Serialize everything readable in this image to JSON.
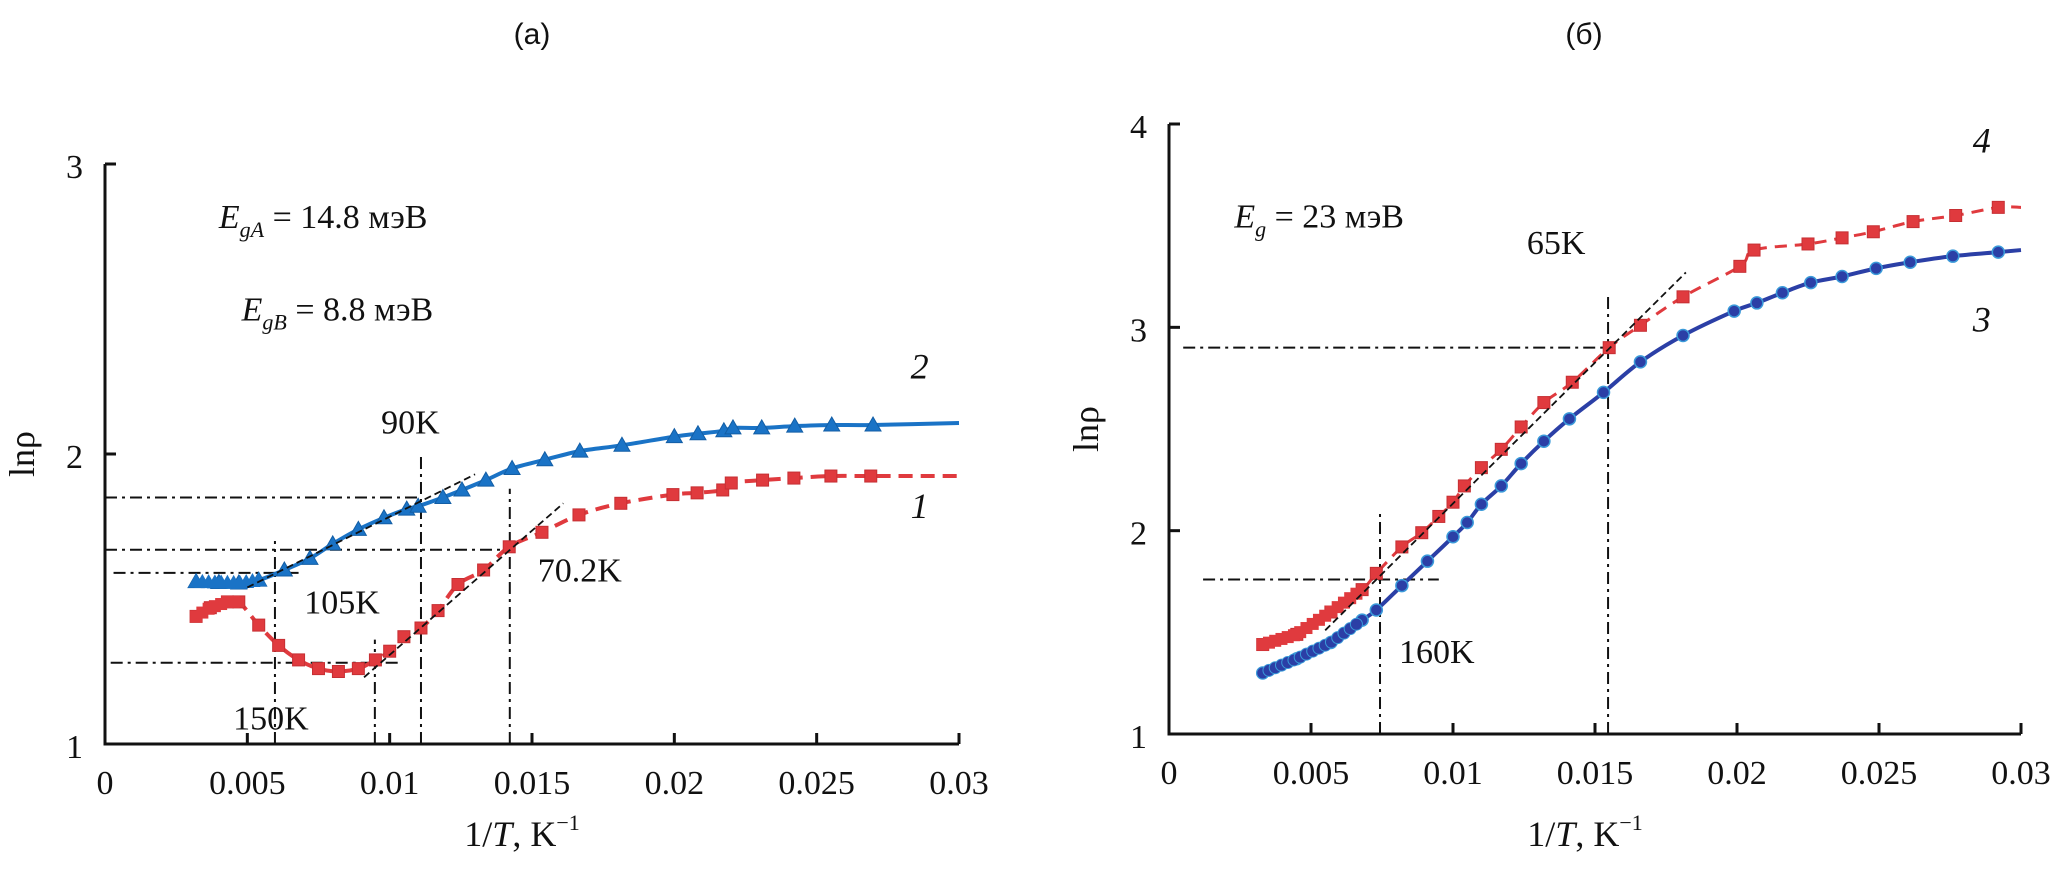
{
  "chart_data": [
    {
      "type": "line",
      "panel_label": "(a)",
      "xlabel": "1/T, K",
      "xlabel_sup": "−1",
      "ylabel": "lnρ",
      "xlim": [
        0,
        0.03
      ],
      "ylim": [
        1,
        3
      ],
      "x_ticks": [
        0,
        0.005,
        0.01,
        0.015,
        0.02,
        0.025,
        0.03
      ],
      "x_tick_labels": [
        "0",
        "0.005",
        "0.01",
        "0.015",
        "0.02",
        "0.025",
        "0.03"
      ],
      "y_ticks": [
        1,
        2,
        3
      ],
      "y_tick_labels": [
        "1",
        "2",
        "3"
      ],
      "grid": false,
      "annotations": [
        {
          "text": "E_gA = 14.8 мэВ",
          "main": "E",
          "sub": "gA",
          "rest": " = 14.8 мэВ",
          "x": 0.004,
          "y": 2.78
        },
        {
          "text": "E_gB = 8.8 мэВ",
          "main": "E",
          "sub": "gB",
          "rest": " = 8.8 мэВ",
          "x": 0.0048,
          "y": 2.46
        },
        {
          "text": "90K",
          "x": 0.0097,
          "y": 2.07
        },
        {
          "text": "105K",
          "x": 0.007,
          "y": 1.45
        },
        {
          "text": "150K",
          "x": 0.0045,
          "y": 1.05
        },
        {
          "text": "70.2K",
          "x": 0.0152,
          "y": 1.56
        }
      ],
      "curve_labels": [
        {
          "text": "2",
          "x": 0.0283,
          "y": 2.26
        },
        {
          "text": "1",
          "x": 0.0283,
          "y": 1.78
        }
      ],
      "series": [
        {
          "name": "1",
          "color": "#e03a3e",
          "marker": "square",
          "line_style": "dashed",
          "x": [
            0.0032,
            0.0037,
            0.0043,
            0.0047,
            0.0054,
            0.0061,
            0.0068,
            0.0075,
            0.0082,
            0.0089,
            0.0095,
            0.01,
            0.0105,
            0.0111,
            0.0117,
            0.0124,
            0.0133,
            0.0142,
            0.01535,
            0.01665,
            0.01812,
            0.01995,
            0.0208,
            0.0217,
            0.022,
            0.0231,
            0.0242,
            0.0255,
            0.0269,
            0.03
          ],
          "y": [
            1.44,
            1.47,
            1.49,
            1.49,
            1.41,
            1.34,
            1.29,
            1.26,
            1.25,
            1.26,
            1.29,
            1.32,
            1.37,
            1.4,
            1.46,
            1.55,
            1.6,
            1.68,
            1.73,
            1.79,
            1.83,
            1.86,
            1.866,
            1.876,
            1.9,
            1.91,
            1.917,
            1.924,
            1.924,
            1.924
          ]
        },
        {
          "name": "2",
          "color": "#1a73c6",
          "marker": "triangle",
          "line_style": "solid",
          "x": [
            0.0032,
            0.004,
            0.0047,
            0.0054,
            0.0063,
            0.0072,
            0.008,
            0.0089,
            0.0098,
            0.0106,
            0.011,
            0.01187,
            0.01254,
            0.01338,
            0.0143,
            0.01545,
            0.01668,
            0.01816,
            0.02,
            0.02083,
            0.02174,
            0.02206,
            0.02307,
            0.02423,
            0.02553,
            0.02698,
            0.03
          ],
          "y": [
            1.56,
            1.557,
            1.555,
            1.565,
            1.6,
            1.64,
            1.69,
            1.74,
            1.78,
            1.81,
            1.82,
            1.85,
            1.876,
            1.91,
            1.95,
            1.98,
            2.01,
            2.03,
            2.06,
            2.07,
            2.08,
            2.09,
            2.09,
            2.096,
            2.1,
            2.1,
            2.107
          ]
        }
      ],
      "fit_lines": [
        {
          "x": [
            0.005,
            0.013
          ],
          "y": [
            1.54,
            1.93
          ]
        },
        {
          "x": [
            0.0091,
            0.0161
          ],
          "y": [
            1.23,
            1.83
          ]
        }
      ],
      "reference_lines": [
        {
          "orientation": "horizontal",
          "y": 1.85,
          "x_range": [
            0,
            0.0111
          ]
        },
        {
          "orientation": "horizontal",
          "y": 1.67,
          "x_range": [
            0,
            0.0143
          ]
        },
        {
          "orientation": "horizontal",
          "y": 1.59,
          "x_range": [
            0.0003,
            0.0068
          ]
        },
        {
          "orientation": "horizontal",
          "y": 1.28,
          "x_range": [
            0.0002,
            0.0104
          ]
        },
        {
          "orientation": "vertical",
          "x": 0.00597,
          "y_range": [
            1,
            1.7
          ]
        },
        {
          "orientation": "vertical",
          "x": 0.00948,
          "y_range": [
            1,
            1.36
          ]
        },
        {
          "orientation": "vertical",
          "x": 0.0111,
          "y_range": [
            1,
            2.0
          ]
        },
        {
          "orientation": "vertical",
          "x": 0.01422,
          "y_range": [
            1,
            1.88
          ]
        }
      ]
    },
    {
      "type": "line",
      "panel_label": "(б)",
      "xlabel": "1/T, K",
      "xlabel_sup": "−1",
      "ylabel": "lnρ",
      "xlim": [
        0,
        0.03
      ],
      "ylim": [
        1,
        4
      ],
      "x_ticks": [
        0,
        0.005,
        0.01,
        0.015,
        0.02,
        0.025,
        0.03
      ],
      "x_tick_labels": [
        "0",
        "0.005",
        "0.01",
        "0.015",
        "0.02",
        "0.025",
        "0.03"
      ],
      "y_ticks": [
        1,
        2,
        3,
        4
      ],
      "y_tick_labels": [
        "1",
        "2",
        "3",
        "4"
      ],
      "grid": false,
      "annotations": [
        {
          "text": "E_g = 23 мэВ",
          "main": "E",
          "sub": "g",
          "rest": " = 23 мэВ",
          "x": 0.0023,
          "y": 3.49
        },
        {
          "text": "65K",
          "x": 0.0126,
          "y": 3.36
        },
        {
          "text": "160K",
          "x": 0.0081,
          "y": 1.35
        }
      ],
      "curve_labels": [
        {
          "text": "4",
          "x": 0.0283,
          "y": 3.86
        },
        {
          "text": "3",
          "x": 0.0283,
          "y": 2.98
        }
      ],
      "series": [
        {
          "name": "3",
          "color": "#2b3fa6",
          "marker": "circle",
          "line_style": "solid",
          "x": [
            0.0033,
            0.0045,
            0.0057,
            0.0068,
            0.0073,
            0.0082,
            0.0091,
            0.01,
            0.0105,
            0.011,
            0.0117,
            0.0124,
            0.0132,
            0.0141,
            0.0153,
            0.0166,
            0.0181,
            0.0199,
            0.0207,
            0.0216,
            0.0226,
            0.0237,
            0.0249,
            0.0261,
            0.0276,
            0.0292,
            0.03
          ],
          "y": [
            1.3,
            1.37,
            1.45,
            1.56,
            1.61,
            1.73,
            1.85,
            1.97,
            2.04,
            2.13,
            2.22,
            2.33,
            2.44,
            2.55,
            2.68,
            2.83,
            2.96,
            3.08,
            3.12,
            3.17,
            3.22,
            3.25,
            3.29,
            3.32,
            3.35,
            3.37,
            3.38
          ]
        },
        {
          "name": "4",
          "color": "#e03a3e",
          "marker": "square",
          "line_style": "dashed-open",
          "x": [
            0.0033,
            0.0045,
            0.0057,
            0.0068,
            0.0073,
            0.0082,
            0.0089,
            0.0095,
            0.01,
            0.0104,
            0.011,
            0.0117,
            0.0124,
            0.0132,
            0.0142,
            0.0155,
            0.0166,
            0.0181,
            0.0201,
            0.0206,
            0.0225,
            0.0237,
            0.0248,
            0.0262,
            0.0277,
            0.0292,
            0.03
          ],
          "y": [
            1.44,
            1.49,
            1.6,
            1.71,
            1.79,
            1.92,
            1.99,
            2.07,
            2.14,
            2.22,
            2.31,
            2.4,
            2.51,
            2.63,
            2.73,
            2.9,
            3.01,
            3.15,
            3.3,
            3.38,
            3.41,
            3.44,
            3.47,
            3.52,
            3.55,
            3.59,
            3.59
          ]
        }
      ],
      "fit_lines": [
        {
          "x": [
            0.0055,
            0.0182
          ],
          "y": [
            1.51,
            3.27
          ]
        }
      ],
      "reference_lines": [
        {
          "orientation": "horizontal",
          "y": 2.9,
          "x_range": [
            0.0005,
            0.01546
          ]
        },
        {
          "orientation": "horizontal",
          "y": 1.76,
          "x_range": [
            0.0012,
            0.0095
          ]
        },
        {
          "orientation": "vertical",
          "x": 0.00743,
          "y_range": [
            1,
            2.09
          ]
        },
        {
          "orientation": "vertical",
          "x": 0.01546,
          "y_range": [
            1,
            3.16
          ]
        }
      ]
    }
  ]
}
